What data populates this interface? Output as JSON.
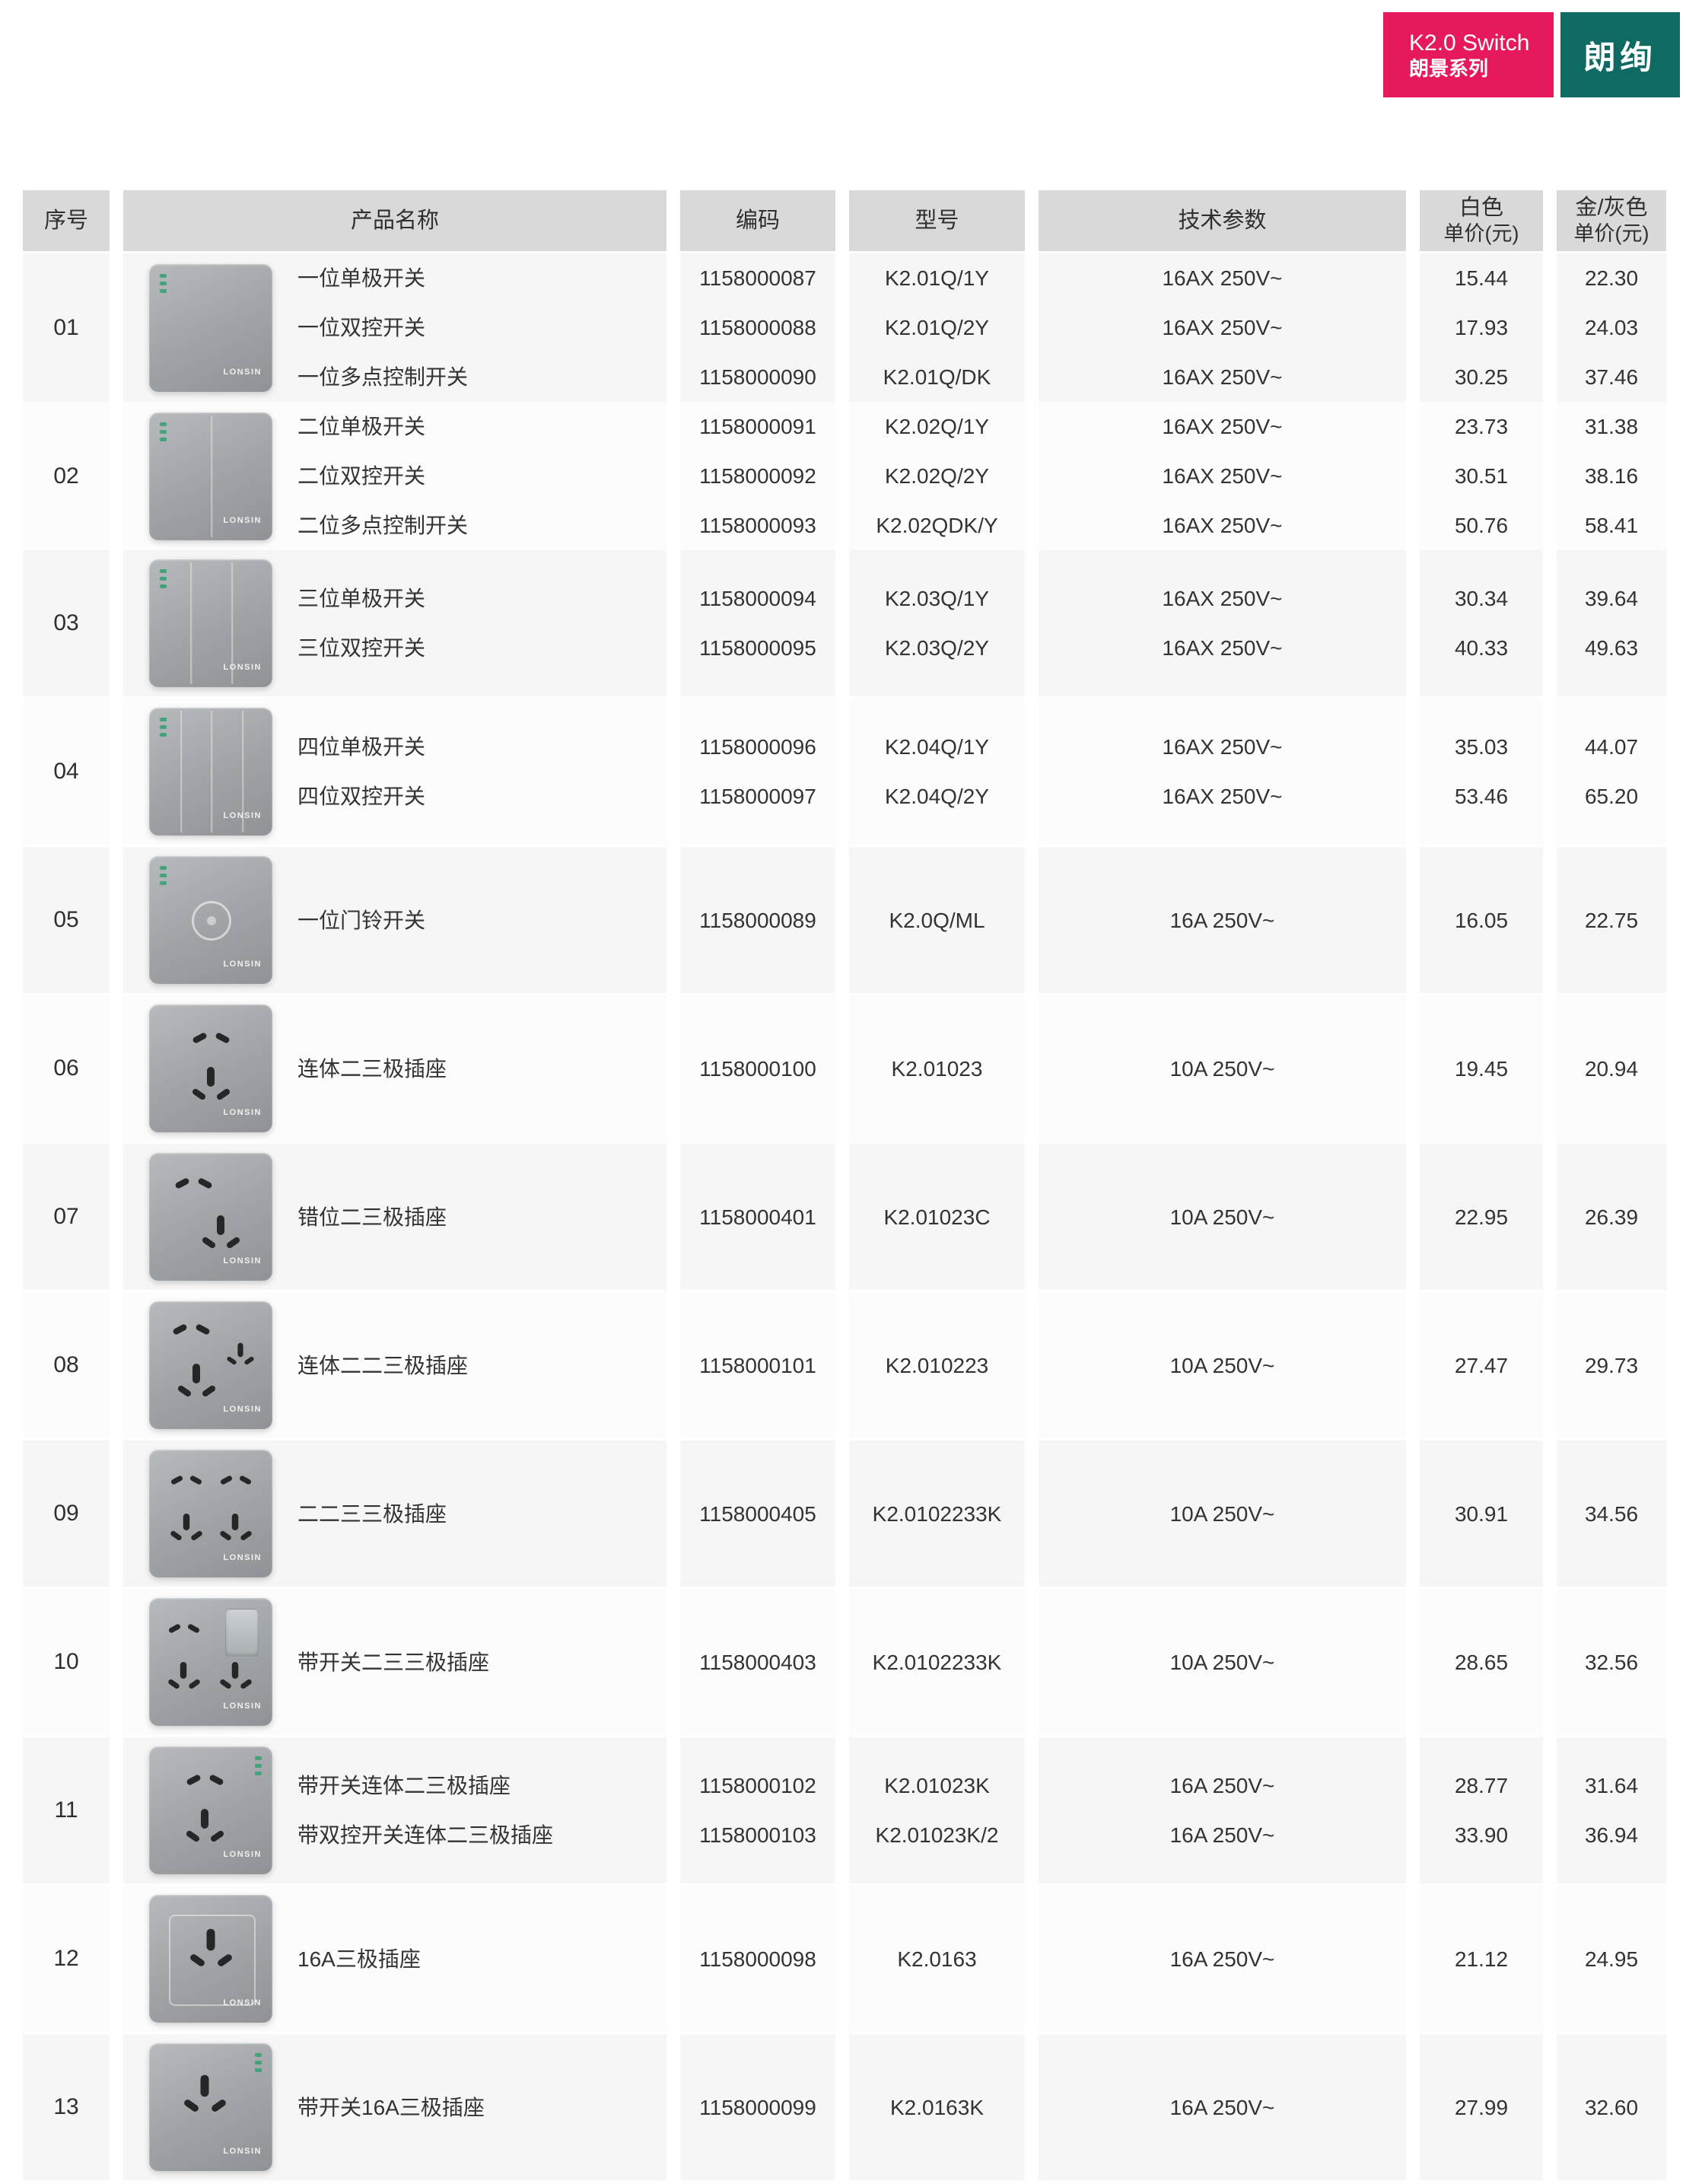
{
  "header_badges": {
    "series_en": "K2.0 Switch",
    "series_cn": "朗景系列",
    "brand": "朗绚",
    "pink_color": "#E5195B",
    "teal_color": "#0E6A63"
  },
  "plate_brand": "LONSIN",
  "table": {
    "columns": [
      {
        "label": "序号"
      },
      {
        "label": "产品名称"
      },
      {
        "label": "编码"
      },
      {
        "label": "型号"
      },
      {
        "label": "技术参数"
      },
      {
        "label": "白色",
        "sublabel": "单价(元)"
      },
      {
        "label": "金/灰色",
        "sublabel": "单价(元)"
      }
    ],
    "rows": [
      {
        "index": "01",
        "plate": "switch-1",
        "plate_icon": "one-gang-switch-plate-icon",
        "items": [
          {
            "name": "一位单极开关",
            "code": "1158000087",
            "model": "K2.01Q/1Y",
            "spec": "16AX 250V~",
            "white": "15.44",
            "gold": "22.30"
          },
          {
            "name": "一位双控开关",
            "code": "1158000088",
            "model": "K2.01Q/2Y",
            "spec": "16AX 250V~",
            "white": "17.93",
            "gold": "24.03"
          },
          {
            "name": "一位多点控制开关",
            "code": "1158000090",
            "model": "K2.01Q/DK",
            "spec": "16AX 250V~",
            "white": "30.25",
            "gold": "37.46"
          }
        ]
      },
      {
        "index": "02",
        "plate": "switch-2",
        "plate_icon": "two-gang-switch-plate-icon",
        "items": [
          {
            "name": "二位单极开关",
            "code": "1158000091",
            "model": "K2.02Q/1Y",
            "spec": "16AX 250V~",
            "white": "23.73",
            "gold": "31.38"
          },
          {
            "name": "二位双控开关",
            "code": "1158000092",
            "model": "K2.02Q/2Y",
            "spec": "16AX 250V~",
            "white": "30.51",
            "gold": "38.16"
          },
          {
            "name": "二位多点控制开关",
            "code": "1158000093",
            "model": "K2.02QDK/Y",
            "spec": "16AX 250V~",
            "white": "50.76",
            "gold": "58.41"
          }
        ]
      },
      {
        "index": "03",
        "plate": "switch-3",
        "plate_icon": "three-gang-switch-plate-icon",
        "items": [
          {
            "name": "三位单极开关",
            "code": "1158000094",
            "model": "K2.03Q/1Y",
            "spec": "16AX 250V~",
            "white": "30.34",
            "gold": "39.64"
          },
          {
            "name": "三位双控开关",
            "code": "1158000095",
            "model": "K2.03Q/2Y",
            "spec": "16AX 250V~",
            "white": "40.33",
            "gold": "49.63"
          }
        ]
      },
      {
        "index": "04",
        "plate": "switch-4",
        "plate_icon": "four-gang-switch-plate-icon",
        "items": [
          {
            "name": "四位单极开关",
            "code": "1158000096",
            "model": "K2.04Q/1Y",
            "spec": "16AX 250V~",
            "white": "35.03",
            "gold": "44.07"
          },
          {
            "name": "四位双控开关",
            "code": "1158000097",
            "model": "K2.04Q/2Y",
            "spec": "16AX 250V~",
            "white": "53.46",
            "gold": "65.20"
          }
        ]
      },
      {
        "index": "05",
        "plate": "doorbell",
        "plate_icon": "doorbell-switch-plate-icon",
        "items": [
          {
            "name": "一位门铃开关",
            "code": "1158000089",
            "model": "K2.0Q/ML",
            "spec": "16A 250V~",
            "white": "16.05",
            "gold": "22.75"
          }
        ]
      },
      {
        "index": "06",
        "plate": "socket5",
        "plate_icon": "five-hole-socket-plate-icon",
        "items": [
          {
            "name": "连体二三极插座",
            "code": "1158000100",
            "model": "K2.01023",
            "spec": "10A 250V~",
            "white": "19.45",
            "gold": "20.94"
          }
        ]
      },
      {
        "index": "07",
        "plate": "socket5c",
        "plate_icon": "staggered-five-hole-socket-plate-icon",
        "items": [
          {
            "name": "错位二三极插座",
            "code": "1158000401",
            "model": "K2.01023C",
            "spec": "10A 250V~",
            "white": "22.95",
            "gold": "26.39"
          }
        ]
      },
      {
        "index": "08",
        "plate": "socket7",
        "plate_icon": "seven-hole-socket-plate-icon",
        "items": [
          {
            "name": "连体二二三极插座",
            "code": "1158000101",
            "model": "K2.010223",
            "spec": "10A 250V~",
            "white": "27.47",
            "gold": "29.73"
          }
        ]
      },
      {
        "index": "09",
        "plate": "socket10",
        "plate_icon": "ten-hole-socket-plate-icon",
        "items": [
          {
            "name": "二二三三极插座",
            "code": "1158000405",
            "model": "K2.0102233K",
            "spec": "10A 250V~",
            "white": "30.91",
            "gold": "34.56"
          }
        ]
      },
      {
        "index": "10",
        "plate": "socket10k",
        "plate_icon": "switched-ten-hole-socket-plate-icon",
        "items": [
          {
            "name": "带开关二三三极插座",
            "code": "1158000403",
            "model": "K2.0102233K",
            "spec": "10A 250V~",
            "white": "28.65",
            "gold": "32.56"
          }
        ]
      },
      {
        "index": "11",
        "plate": "socket5k",
        "plate_icon": "switched-five-hole-socket-plate-icon",
        "items": [
          {
            "name": "带开关连体二三极插座",
            "code": "1158000102",
            "model": "K2.01023K",
            "spec": "16A 250V~",
            "white": "28.77",
            "gold": "31.64"
          },
          {
            "name": "带双控开关连体二三极插座",
            "code": "1158000103",
            "model": "K2.01023K/2",
            "spec": "16A 250V~",
            "white": "33.90",
            "gold": "36.94"
          }
        ]
      },
      {
        "index": "12",
        "plate": "socket16",
        "plate_icon": "16a-three-pin-socket-plate-icon",
        "items": [
          {
            "name": "16A三极插座",
            "code": "1158000098",
            "model": "K2.0163",
            "spec": "16A 250V~",
            "white": "21.12",
            "gold": "24.95"
          }
        ]
      },
      {
        "index": "13",
        "plate": "socket16k",
        "plate_icon": "switched-16a-three-pin-socket-plate-icon",
        "items": [
          {
            "name": "带开关16A三极插座",
            "code": "1158000099",
            "model": "K2.0163K",
            "spec": "16A 250V~",
            "white": "27.99",
            "gold": "32.60"
          }
        ]
      }
    ]
  }
}
